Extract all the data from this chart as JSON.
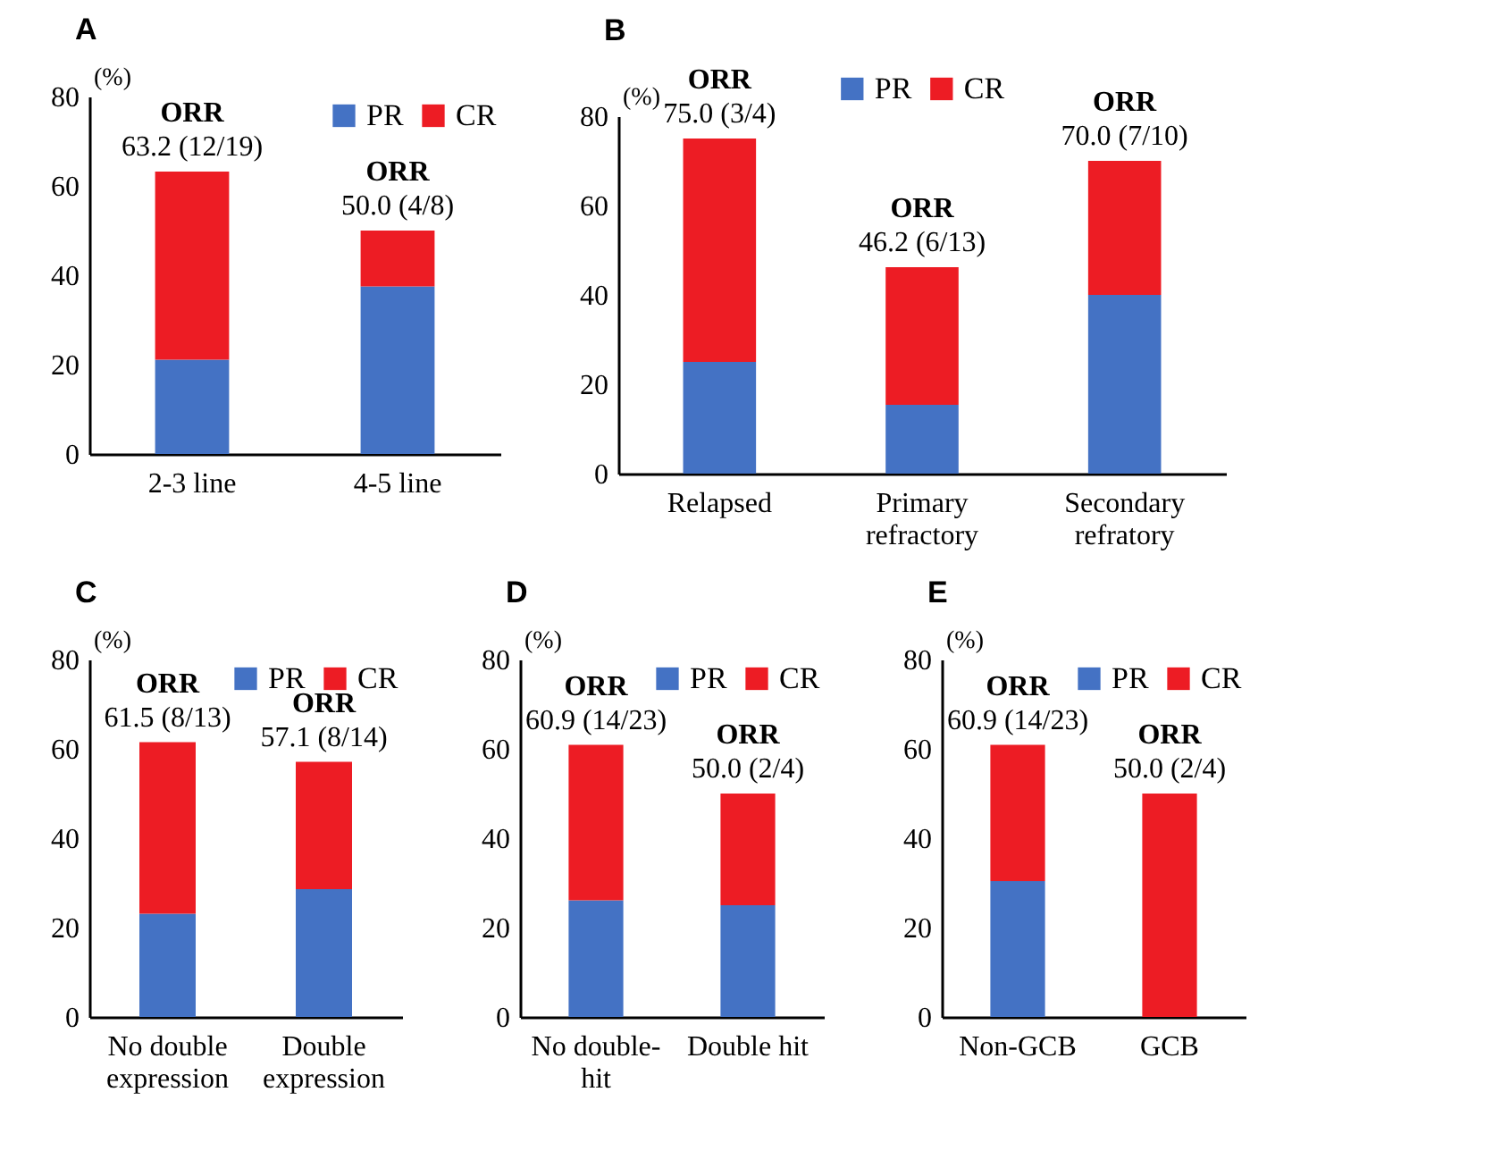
{
  "chart_data": [
    {
      "type": "bar",
      "title": "A",
      "ylabel": "(%)",
      "categories": [
        "2-3 line",
        "4-5 line"
      ],
      "stacked": true,
      "ylim": [
        0,
        80
      ],
      "yticks": [
        0,
        20,
        40,
        60,
        80
      ],
      "legend": "top right",
      "series": [
        {
          "name": "PR",
          "color": "#4472c4",
          "values": [
            21.1,
            37.5
          ]
        },
        {
          "name": "CR",
          "color": "#ed1c24",
          "values": [
            42.1,
            12.5
          ]
        }
      ],
      "annotations": [
        {
          "text": "ORR",
          "x": "2-3 line",
          "y": 63.2
        },
        {
          "text": "63.2 (12/19)",
          "x": "2-3 line",
          "y": 63.2
        },
        {
          "text": "ORR",
          "x": "4-5 line",
          "y": 50.0
        },
        {
          "text": "50.0 (4/8)",
          "x": "4-5 line",
          "y": 50.0
        }
      ]
    },
    {
      "type": "bar",
      "title": "B",
      "ylabel": "(%)",
      "categories": [
        "Relapsed",
        "Primary refractory",
        "Secondary refratory"
      ],
      "stacked": true,
      "ylim": [
        0,
        80
      ],
      "yticks": [
        0,
        20,
        40,
        60,
        80
      ],
      "legend": "top",
      "series": [
        {
          "name": "PR",
          "color": "#4472c4",
          "values": [
            25.0,
            15.4,
            40.0
          ]
        },
        {
          "name": "CR",
          "color": "#ed1c24",
          "values": [
            50.0,
            30.8,
            30.0
          ]
        }
      ],
      "annotations": [
        {
          "text": "ORR",
          "x": "Relapsed",
          "y": 75.0
        },
        {
          "text": "75.0 (3/4)",
          "x": "Relapsed",
          "y": 75.0
        },
        {
          "text": "ORR",
          "x": "Primary refractory",
          "y": 46.2
        },
        {
          "text": "46.2 (6/13)",
          "x": "Primary refractory",
          "y": 46.2
        },
        {
          "text": "ORR",
          "x": "Secondary refratory",
          "y": 70.0
        },
        {
          "text": "70.0 (7/10)",
          "x": "Secondary refratory",
          "y": 70.0
        }
      ]
    },
    {
      "type": "bar",
      "title": "C",
      "ylabel": "(%)",
      "categories": [
        "No double expression",
        "Double expression"
      ],
      "stacked": true,
      "ylim": [
        0,
        80
      ],
      "yticks": [
        0,
        20,
        40,
        60,
        80
      ],
      "legend": "top right",
      "series": [
        {
          "name": "PR",
          "color": "#4472c4",
          "values": [
            23.1,
            28.6
          ]
        },
        {
          "name": "CR",
          "color": "#ed1c24",
          "values": [
            38.4,
            28.5
          ]
        }
      ],
      "annotations": [
        {
          "text": "ORR",
          "x": "No double expression",
          "y": 61.5
        },
        {
          "text": "61.5 (8/13)",
          "x": "No double expression",
          "y": 61.5
        },
        {
          "text": "ORR",
          "x": "Double expression",
          "y": 57.1
        },
        {
          "text": "57.1 (8/14)",
          "x": "Double expression",
          "y": 57.1
        }
      ]
    },
    {
      "type": "bar",
      "title": "D",
      "ylabel": "(%)",
      "categories": [
        "No double-hit",
        "Double hit"
      ],
      "stacked": true,
      "ylim": [
        0,
        80
      ],
      "yticks": [
        0,
        20,
        40,
        60,
        80
      ],
      "legend": "top right",
      "series": [
        {
          "name": "PR",
          "color": "#4472c4",
          "values": [
            26.1,
            25.0
          ]
        },
        {
          "name": "CR",
          "color": "#ed1c24",
          "values": [
            34.8,
            25.0
          ]
        }
      ],
      "annotations": [
        {
          "text": "ORR",
          "x": "No double-hit",
          "y": 60.9
        },
        {
          "text": "60.9 (14/23)",
          "x": "No double-hit",
          "y": 60.9
        },
        {
          "text": "ORR",
          "x": "Double hit",
          "y": 50.0
        },
        {
          "text": "50.0 (2/4)",
          "x": "Double hit",
          "y": 50.0
        }
      ]
    },
    {
      "type": "bar",
      "title": "E",
      "ylabel": "(%)",
      "categories": [
        "Non-GCB",
        "GCB"
      ],
      "stacked": true,
      "ylim": [
        0,
        80
      ],
      "yticks": [
        0,
        20,
        40,
        60,
        80
      ],
      "legend": "top right",
      "series": [
        {
          "name": "PR",
          "color": "#4472c4",
          "values": [
            30.4,
            0
          ]
        },
        {
          "name": "CR",
          "color": "#ed1c24",
          "values": [
            30.5,
            50.0
          ]
        }
      ],
      "annotations": [
        {
          "text": "ORR",
          "x": "Non-GCB",
          "y": 60.9
        },
        {
          "text": "60.9 (14/23)",
          "x": "Non-GCB",
          "y": 60.9
        },
        {
          "text": "ORR",
          "x": "GCB",
          "y": 50.0
        },
        {
          "text": "50.0 (2/4)",
          "x": "GCB",
          "y": 50.0
        }
      ]
    }
  ]
}
